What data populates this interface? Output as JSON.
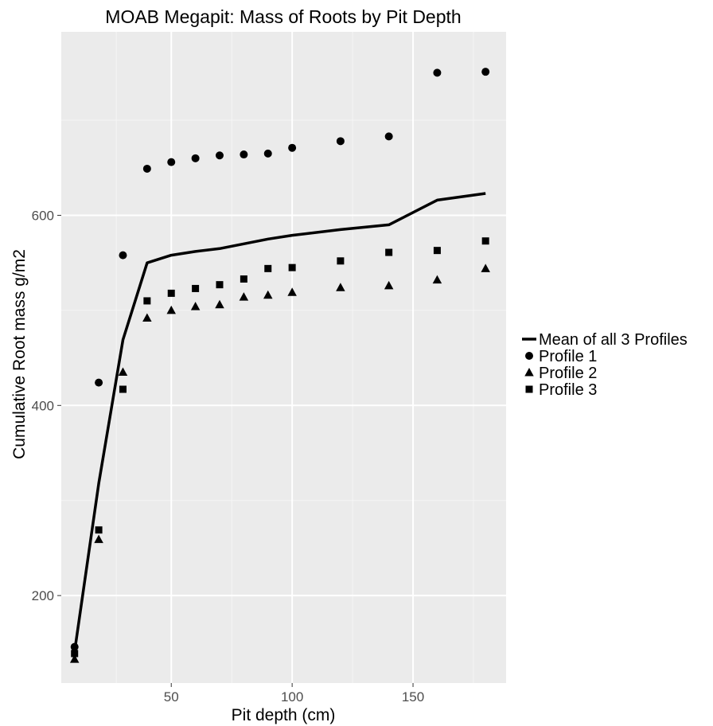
{
  "chart_data": {
    "type": "scatter",
    "title": "MOAB Megapit: Mass of Roots by Pit Depth",
    "xlabel": "Pit depth (cm)",
    "ylabel": "Cumulative Root mass g/m2",
    "xlim": [
      4.5,
      188.5
    ],
    "ylim": [
      108,
      793
    ],
    "x_ticks": [
      50,
      100,
      150
    ],
    "y_ticks": [
      200,
      400,
      600
    ],
    "grid": true,
    "legend_position": "right",
    "background": "#ebebeb",
    "series": [
      {
        "name": "Mean of all 3 Profiles",
        "kind": "line",
        "x": [
          10,
          20,
          30,
          40,
          50,
          60,
          70,
          80,
          90,
          100,
          120,
          140,
          160,
          180
        ],
        "y": [
          141,
          318,
          469,
          550,
          558,
          562,
          565,
          570,
          575,
          579,
          585,
          590,
          616,
          623
        ]
      },
      {
        "name": "Profile 1",
        "kind": "point",
        "shape": "circle",
        "x": [
          10,
          20,
          30,
          40,
          50,
          60,
          70,
          80,
          90,
          100,
          120,
          140,
          160,
          180
        ],
        "y": [
          146,
          424,
          558,
          649,
          656,
          660,
          663,
          664,
          665,
          671,
          678,
          683,
          750,
          751
        ]
      },
      {
        "name": "Profile 2",
        "kind": "point",
        "shape": "triangle",
        "x": [
          10,
          20,
          30,
          40,
          50,
          60,
          70,
          80,
          90,
          100,
          120,
          140,
          160,
          180
        ],
        "y": [
          133,
          259,
          435,
          492,
          500,
          504,
          506,
          514,
          516,
          519,
          524,
          526,
          532,
          544
        ]
      },
      {
        "name": "Profile 3",
        "kind": "point",
        "shape": "square",
        "x": [
          10,
          20,
          30,
          40,
          50,
          60,
          70,
          80,
          90,
          100,
          120,
          140,
          160,
          180
        ],
        "y": [
          139,
          269,
          417,
          510,
          518,
          523,
          527,
          533,
          544,
          545,
          552,
          561,
          563,
          573
        ]
      }
    ]
  }
}
